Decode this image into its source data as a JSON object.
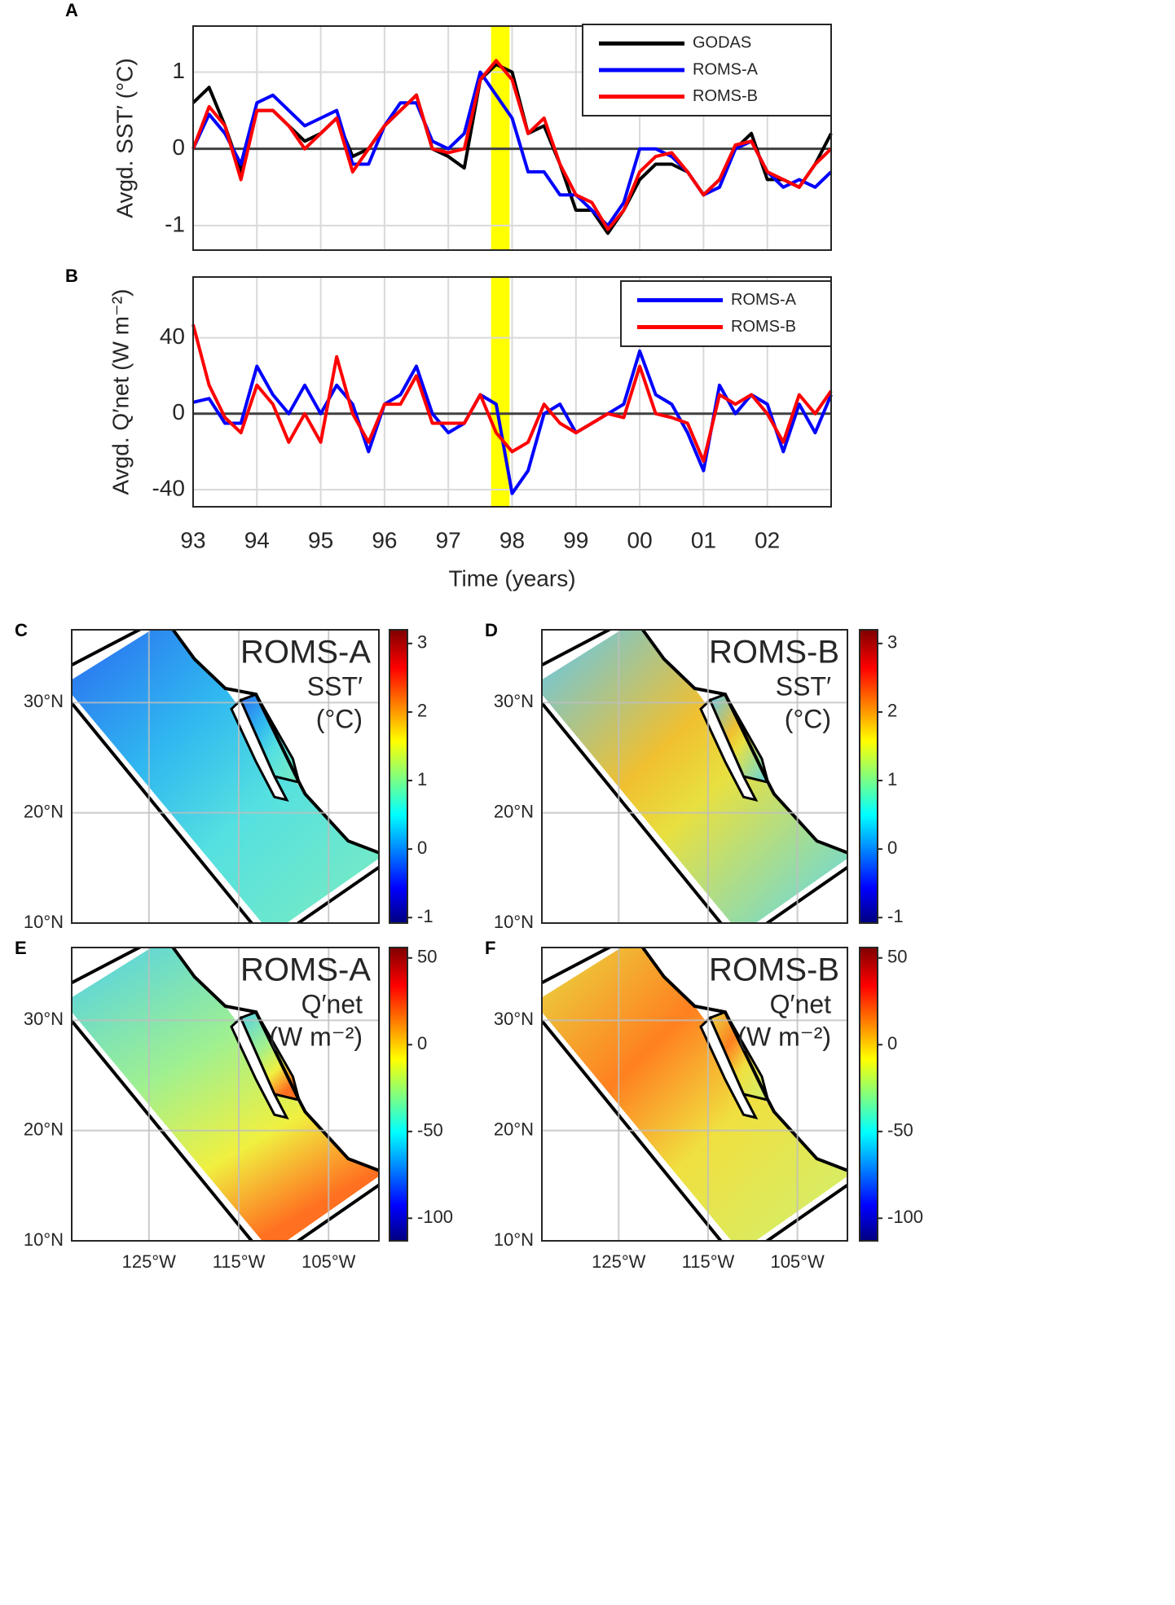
{
  "chart_data": [
    {
      "type": "line",
      "label": "A",
      "ylabel": "Avgd. SST′ (°C)",
      "legend": "upper right",
      "grid": true,
      "zero_line": true,
      "show_xtick_labels": false,
      "highlight": [
        1997.67,
        1997.96
      ],
      "xlim": [
        1993,
        2003
      ],
      "ylim": [
        -1.32,
        1.6
      ],
      "yticks": [
        -1,
        0,
        1
      ],
      "xticks": [
        {
          "value": 1993,
          "label": "93"
        },
        {
          "value": 1994,
          "label": "94"
        },
        {
          "value": 1995,
          "label": "95"
        },
        {
          "value": 1996,
          "label": "96"
        },
        {
          "value": 1997,
          "label": "97"
        },
        {
          "value": 1998,
          "label": "98"
        },
        {
          "value": 1999,
          "label": "99"
        },
        {
          "value": 2000,
          "label": "00"
        },
        {
          "value": 2001,
          "label": "01"
        },
        {
          "value": 2002,
          "label": "02"
        }
      ],
      "x": [
        1993,
        1993.25,
        1993.5,
        1993.75,
        1994,
        1994.25,
        1994.5,
        1994.75,
        1995,
        1995.25,
        1995.5,
        1995.75,
        1996,
        1996.25,
        1996.5,
        1996.75,
        1997,
        1997.25,
        1997.5,
        1997.75,
        1998,
        1998.25,
        1998.5,
        1998.75,
        1999,
        1999.25,
        1999.5,
        1999.75,
        2000,
        2000.25,
        2000.5,
        2000.75,
        2001,
        2001.25,
        2001.5,
        2001.75,
        2002,
        2002.25,
        2002.5,
        2002.75,
        2003
      ],
      "series": [
        {
          "name": "GODAS",
          "color": "#000000",
          "values": [
            0.6,
            0.8,
            0.3,
            -0.3,
            0.5,
            0.5,
            0.3,
            0.1,
            0.2,
            0.4,
            -0.1,
            0.0,
            0.3,
            0.5,
            0.7,
            0.0,
            -0.1,
            -0.25,
            0.9,
            1.1,
            1.0,
            0.2,
            0.3,
            -0.2,
            -0.8,
            -0.8,
            -1.1,
            -0.8,
            -0.4,
            -0.2,
            -0.2,
            -0.3,
            -0.6,
            -0.4,
            0.0,
            0.2,
            -0.4,
            -0.4,
            -0.5,
            -0.2,
            0.2
          ]
        },
        {
          "name": "ROMS-A",
          "color": "#0000ff",
          "values": [
            0.0,
            0.45,
            0.2,
            -0.2,
            0.6,
            0.7,
            0.5,
            0.3,
            0.4,
            0.5,
            -0.2,
            -0.2,
            0.3,
            0.6,
            0.6,
            0.1,
            0.0,
            0.2,
            1.0,
            0.7,
            0.4,
            -0.3,
            -0.3,
            -0.6,
            -0.6,
            -0.8,
            -1.0,
            -0.7,
            0.0,
            0.0,
            -0.1,
            -0.3,
            -0.6,
            -0.5,
            0.0,
            0.1,
            -0.3,
            -0.5,
            -0.4,
            -0.5,
            -0.3
          ]
        },
        {
          "name": "ROMS-B",
          "color": "#ff0000",
          "values": [
            0.0,
            0.55,
            0.3,
            -0.4,
            0.5,
            0.5,
            0.3,
            0.0,
            0.2,
            0.4,
            -0.3,
            0.0,
            0.3,
            0.5,
            0.7,
            0.0,
            -0.05,
            0.0,
            0.9,
            1.15,
            0.9,
            0.2,
            0.4,
            -0.2,
            -0.6,
            -0.7,
            -1.05,
            -0.8,
            -0.3,
            -0.1,
            -0.05,
            -0.3,
            -0.6,
            -0.4,
            0.05,
            0.1,
            -0.3,
            -0.4,
            -0.5,
            -0.2,
            0.0
          ]
        }
      ]
    },
    {
      "type": "line",
      "label": "B",
      "ylabel": "Avgd. Q′net (W m⁻²)",
      "xlabel": "Time (years)",
      "legend": "upper right",
      "grid": true,
      "zero_line": true,
      "show_xtick_labels": true,
      "highlight": [
        1997.67,
        1997.96
      ],
      "xlim": [
        1993,
        2003
      ],
      "ylim": [
        -49,
        72
      ],
      "yticks": [
        -40,
        0,
        40
      ],
      "xticks": [
        {
          "value": 1993,
          "label": "93"
        },
        {
          "value": 1994,
          "label": "94"
        },
        {
          "value": 1995,
          "label": "95"
        },
        {
          "value": 1996,
          "label": "96"
        },
        {
          "value": 1997,
          "label": "97"
        },
        {
          "value": 1998,
          "label": "98"
        },
        {
          "value": 1999,
          "label": "99"
        },
        {
          "value": 2000,
          "label": "00"
        },
        {
          "value": 2001,
          "label": "01"
        },
        {
          "value": 2002,
          "label": "02"
        }
      ],
      "x": [
        1993,
        1993.25,
        1993.5,
        1993.75,
        1994,
        1994.25,
        1994.5,
        1994.75,
        1995,
        1995.25,
        1995.5,
        1995.75,
        1996,
        1996.25,
        1996.5,
        1996.75,
        1997,
        1997.25,
        1997.5,
        1997.75,
        1998,
        1998.25,
        1998.5,
        1998.75,
        1999,
        1999.25,
        1999.5,
        1999.75,
        2000,
        2000.25,
        2000.5,
        2000.75,
        2001,
        2001.25,
        2001.5,
        2001.75,
        2002,
        2002.25,
        2002.5,
        2002.75,
        2003
      ],
      "series": [
        {
          "name": "ROMS-A",
          "color": "#0000ff",
          "values": [
            6,
            8,
            -5,
            -5,
            25,
            10,
            0,
            15,
            0,
            15,
            5,
            -20,
            5,
            10,
            25,
            0,
            -10,
            -5,
            10,
            5,
            -42,
            -30,
            0,
            5,
            -10,
            -5,
            0,
            5,
            33,
            10,
            5,
            -10,
            -30,
            15,
            0,
            10,
            5,
            -20,
            5,
            -10,
            10
          ]
        },
        {
          "name": "ROMS-B",
          "color": "#ff0000",
          "values": [
            47,
            15,
            -2,
            -10,
            15,
            5,
            -15,
            0,
            -15,
            30,
            0,
            -15,
            5,
            5,
            20,
            -5,
            -5,
            -5,
            10,
            -10,
            -20,
            -15,
            5,
            -5,
            -10,
            -5,
            0,
            -2,
            25,
            0,
            -2,
            -5,
            -25,
            10,
            5,
            10,
            0,
            -15,
            10,
            0,
            12
          ]
        }
      ]
    },
    {
      "type": "map",
      "label": "C",
      "title": "ROMS-A",
      "variable": "SST′",
      "units": "(°C)",
      "field": "a-sst",
      "grid": true,
      "show_xtick_labels": false,
      "xlim": [
        -133.6,
        -99.4
      ],
      "ylim": [
        10,
        36.6
      ],
      "xticks": [
        {
          "value": -125,
          "label": "125°W"
        },
        {
          "value": -115,
          "label": "115°W"
        },
        {
          "value": -105,
          "label": "105°W"
        }
      ],
      "yticks": [
        {
          "value": 10,
          "label": "10°N"
        },
        {
          "value": 20,
          "label": "20°N"
        },
        {
          "value": 30,
          "label": "30°N"
        }
      ],
      "clim": [
        -1.08,
        3.2
      ],
      "cticks": [
        -1,
        0,
        1,
        2,
        3
      ]
    },
    {
      "type": "map",
      "label": "D",
      "title": "ROMS-B",
      "variable": "SST′",
      "units": "(°C)",
      "field": "b-sst",
      "grid": true,
      "show_xtick_labels": false,
      "xlim": [
        -133.6,
        -99.4
      ],
      "ylim": [
        10,
        36.6
      ],
      "xticks": [
        {
          "value": -125,
          "label": "125°W"
        },
        {
          "value": -115,
          "label": "115°W"
        },
        {
          "value": -105,
          "label": "105°W"
        }
      ],
      "yticks": [
        {
          "value": 10,
          "label": "10°N"
        },
        {
          "value": 20,
          "label": "20°N"
        },
        {
          "value": 30,
          "label": "30°N"
        }
      ],
      "clim": [
        -1.08,
        3.2
      ],
      "cticks": [
        -1,
        0,
        1,
        2,
        3
      ]
    },
    {
      "type": "map",
      "label": "E",
      "title": "ROMS-A",
      "variable": "Q′net",
      "units": "(W m⁻²)",
      "field": "a-q",
      "grid": true,
      "show_xtick_labels": true,
      "xlim": [
        -133.6,
        -99.4
      ],
      "ylim": [
        10,
        36.6
      ],
      "xticks": [
        {
          "value": -125,
          "label": "125°W"
        },
        {
          "value": -115,
          "label": "115°W"
        },
        {
          "value": -105,
          "label": "105°W"
        }
      ],
      "yticks": [
        {
          "value": 10,
          "label": "10°N"
        },
        {
          "value": 20,
          "label": "20°N"
        },
        {
          "value": 30,
          "label": "30°N"
        }
      ],
      "clim": [
        -113,
        56
      ],
      "cticks": [
        -100,
        -50,
        0,
        50
      ]
    },
    {
      "type": "map",
      "label": "F",
      "title": "ROMS-B",
      "variable": "Q′net",
      "units": "(W m⁻²)",
      "field": "b-q",
      "grid": true,
      "show_xtick_labels": true,
      "xlim": [
        -133.6,
        -99.4
      ],
      "ylim": [
        10,
        36.6
      ],
      "xticks": [
        {
          "value": -125,
          "label": "125°W"
        },
        {
          "value": -115,
          "label": "115°W"
        },
        {
          "value": -105,
          "label": "105°W"
        }
      ],
      "yticks": [
        {
          "value": 10,
          "label": "10°N"
        },
        {
          "value": 20,
          "label": "20°N"
        },
        {
          "value": 30,
          "label": "30°N"
        }
      ],
      "clim": [
        -113,
        56
      ],
      "cticks": [
        -100,
        -50,
        0,
        50
      ]
    }
  ]
}
